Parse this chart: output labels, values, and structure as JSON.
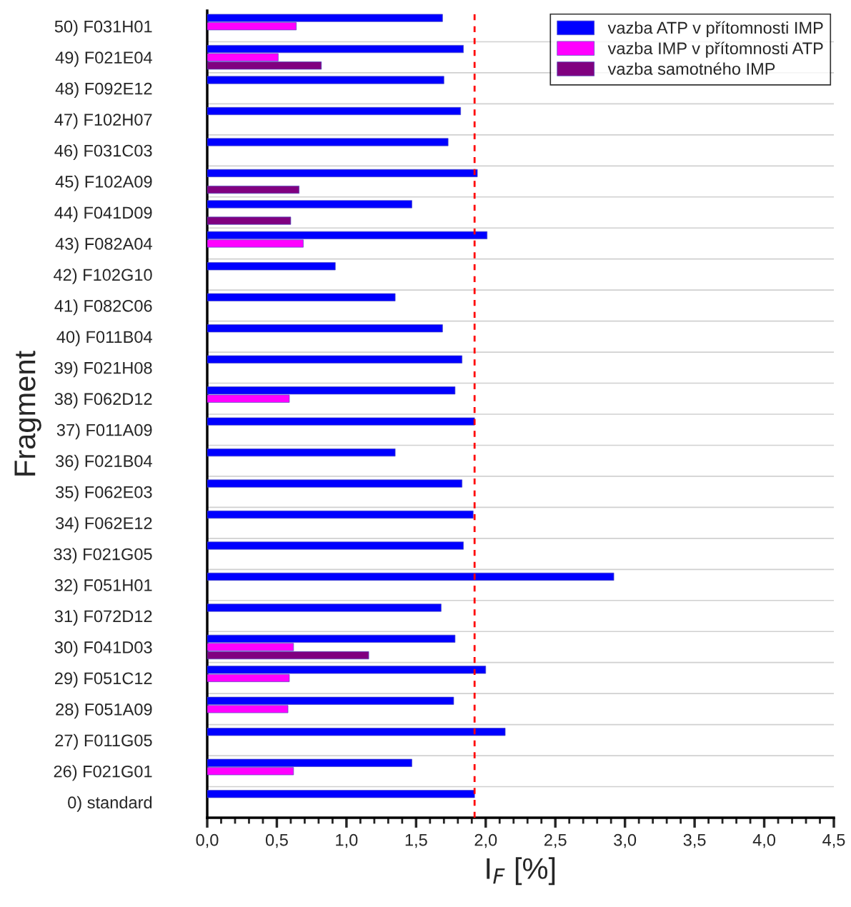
{
  "chart_data": {
    "type": "bar",
    "orientation": "horizontal",
    "xlabel": "I$_{F}$ [%]",
    "ylabel": "Fragment",
    "categories": [
      "50) F031H01",
      "49) F021E04",
      "48) F092E12",
      "47) F102H07",
      "46) F031C03",
      "45) F102A09",
      "44) F041D09",
      "43) F082A04",
      "42) F102G10",
      "41) F082C06",
      "40) F011B04",
      "39) F021H08",
      "38) F062D12",
      "37) F011A09",
      "36) F021B04",
      "35) F062E03",
      "34) F062E12",
      "33) F021G05",
      "32) F051H01",
      "31) F072D12",
      "30) F041D03",
      "29) F051C12",
      "28) F051A09",
      "27) F011G05",
      "26) F021G01",
      "0) standard"
    ],
    "series": [
      {
        "name": "vazba ATP v přítomnosti IMP",
        "color": "#0000ff",
        "values": [
          1.69,
          1.84,
          1.7,
          1.82,
          1.73,
          1.94,
          1.47,
          2.01,
          0.92,
          1.35,
          1.69,
          1.83,
          1.78,
          1.92,
          1.35,
          1.83,
          1.91,
          1.84,
          2.92,
          1.68,
          1.78,
          2.0,
          1.77,
          2.14,
          1.47,
          1.92
        ]
      },
      {
        "name": "vazba IMP v přítomnosti ATP",
        "color": "#ff00ff",
        "values": [
          0.64,
          0.51,
          null,
          null,
          null,
          null,
          null,
          0.69,
          null,
          null,
          null,
          null,
          0.59,
          null,
          null,
          null,
          null,
          null,
          null,
          null,
          0.62,
          0.59,
          0.58,
          null,
          0.62,
          null
        ]
      },
      {
        "name": "vazba samotného IMP",
        "color": "#800080",
        "values": [
          null,
          0.82,
          null,
          null,
          null,
          0.66,
          0.6,
          null,
          null,
          null,
          null,
          null,
          null,
          null,
          null,
          null,
          null,
          null,
          null,
          null,
          1.16,
          null,
          null,
          null,
          null,
          null
        ]
      }
    ],
    "xlim": [
      0,
      4.5
    ],
    "xticks": [
      {
        "value": 0,
        "label": "0,0"
      },
      {
        "value": 0.1,
        "label": null
      },
      {
        "value": 0.2,
        "label": null
      },
      {
        "value": 0.3,
        "label": null
      },
      {
        "value": 0.4,
        "label": null
      },
      {
        "value": 0.5,
        "label": "0,5"
      },
      {
        "value": 0.6,
        "label": null
      },
      {
        "value": 0.7,
        "label": null
      },
      {
        "value": 0.8,
        "label": null
      },
      {
        "value": 0.9,
        "label": null
      },
      {
        "value": 1.0,
        "label": "1,0"
      },
      {
        "value": 1.1,
        "label": null
      },
      {
        "value": 1.2,
        "label": null
      },
      {
        "value": 1.3,
        "label": null
      },
      {
        "value": 1.4,
        "label": null
      },
      {
        "value": 1.5,
        "label": "1,5"
      },
      {
        "value": 1.6,
        "label": null
      },
      {
        "value": 1.7,
        "label": null
      },
      {
        "value": 1.8,
        "label": null
      },
      {
        "value": 1.9,
        "label": null
      },
      {
        "value": 2.0,
        "label": "2,0"
      },
      {
        "value": 2.1,
        "label": null
      },
      {
        "value": 2.2,
        "label": null
      },
      {
        "value": 2.3,
        "label": null
      },
      {
        "value": 2.4,
        "label": null
      },
      {
        "value": 2.5,
        "label": "2,5"
      },
      {
        "value": 2.6,
        "label": null
      },
      {
        "value": 2.7,
        "label": null
      },
      {
        "value": 2.8,
        "label": null
      },
      {
        "value": 2.9,
        "label": null
      },
      {
        "value": 3.0,
        "label": "3,0"
      },
      {
        "value": 3.1,
        "label": null
      },
      {
        "value": 3.2,
        "label": null
      },
      {
        "value": 3.3,
        "label": null
      },
      {
        "value": 3.4,
        "label": null
      },
      {
        "value": 3.5,
        "label": "3,5"
      },
      {
        "value": 3.6,
        "label": null
      },
      {
        "value": 3.7,
        "label": null
      },
      {
        "value": 3.8,
        "label": null
      },
      {
        "value": 3.9,
        "label": null
      },
      {
        "value": 4.0,
        "label": "4,0"
      },
      {
        "value": 4.1,
        "label": null
      },
      {
        "value": 4.2,
        "label": null
      },
      {
        "value": 4.3,
        "label": null
      },
      {
        "value": 4.4,
        "label": null
      },
      {
        "value": 4.5,
        "label": "4,5"
      }
    ],
    "ref_lines": [
      {
        "axis": "x",
        "value": 1.92,
        "color": "#ff0000",
        "line_style": "dashed"
      }
    ],
    "grid": "y",
    "legend": "top right"
  }
}
